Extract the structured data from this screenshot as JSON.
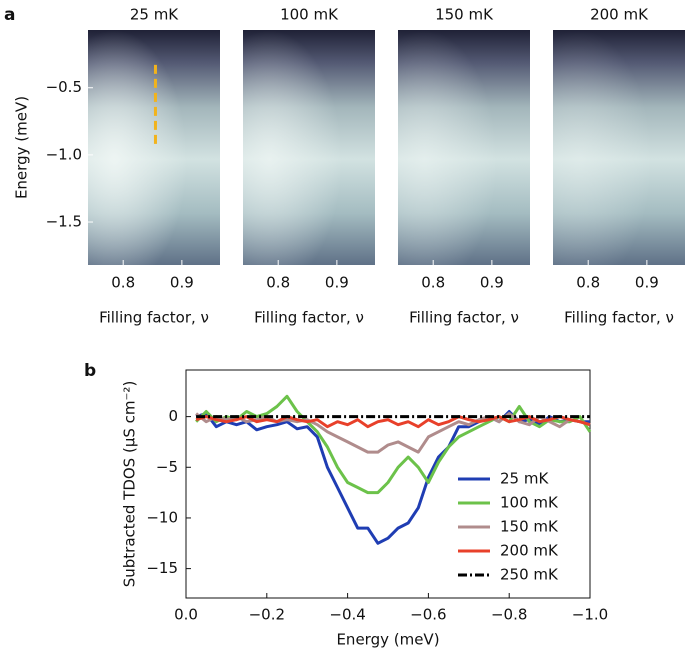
{
  "chart_data": [
    {
      "type": "heatmap",
      "panel_label": "a",
      "panels": [
        {
          "title": "25 mK"
        },
        {
          "title": "100 mK"
        },
        {
          "title": "150 mK"
        },
        {
          "title": "200 mK"
        }
      ],
      "xlabel": "Filling factor, ν",
      "ylabel": "Energy (meV)",
      "xlim": [
        0.74,
        0.965
      ],
      "ylim": [
        -0.07,
        -1.82
      ],
      "xticks": [
        0.8,
        0.9
      ],
      "yticks": [
        {
          "value": -0.5,
          "label": "−0.5"
        },
        {
          "value": -1.0,
          "label": "−1.0"
        },
        {
          "value": -1.5,
          "label": "−1.5"
        }
      ],
      "marker_line": {
        "x": 0.855,
        "y": [
          -0.33,
          -0.95
        ],
        "color": "#f2b31c"
      }
    },
    {
      "type": "line",
      "panel_label": "b",
      "xlabel": "Energy (meV)",
      "ylabel": "Subtracted TDOS (μS cm⁻²)",
      "xlim": [
        0.0,
        -1.0
      ],
      "ylim": [
        -17.9,
        4.6
      ],
      "xticks": [
        {
          "value": 0,
          "label": "0.0"
        },
        {
          "value": -0.2,
          "label": "−0.2"
        },
        {
          "value": -0.4,
          "label": "−0.4"
        },
        {
          "value": -0.6,
          "label": "−0.6"
        },
        {
          "value": -0.8,
          "label": "−0.8"
        },
        {
          "value": -1.0,
          "label": "−1.0"
        }
      ],
      "yticks": [
        {
          "value": -15,
          "label": "−15"
        },
        {
          "value": -10,
          "label": "−10"
        },
        {
          "value": -5,
          "label": "−5"
        },
        0
      ],
      "legend": "lower right",
      "x": [
        -0.025,
        -0.05,
        -0.075,
        -0.1,
        -0.125,
        -0.15,
        -0.175,
        -0.2,
        -0.225,
        -0.25,
        -0.275,
        -0.3,
        -0.325,
        -0.35,
        -0.375,
        -0.4,
        -0.425,
        -0.45,
        -0.475,
        -0.5,
        -0.525,
        -0.55,
        -0.575,
        -0.6,
        -0.625,
        -0.65,
        -0.675,
        -0.7,
        -0.725,
        -0.75,
        -0.775,
        -0.8,
        -0.825,
        -0.85,
        -0.875,
        -0.9,
        -0.925,
        -0.95,
        -0.975,
        -1.0
      ],
      "series": [
        {
          "name": "25 mK",
          "color": "#1f3db3",
          "dashed": false,
          "values": [
            0,
            0.3,
            -1,
            -0.5,
            -0.8,
            -0.5,
            -1.3,
            -1,
            -0.8,
            -0.5,
            -1.2,
            -1,
            -2,
            -5,
            -7,
            -9,
            -11,
            -11,
            -12.5,
            -12,
            -11,
            -10.5,
            -9,
            -6,
            -4,
            -3,
            -1,
            -1,
            -0.5,
            0,
            -0.5,
            0.5,
            -0.5,
            -0.3,
            -0.8,
            0,
            -0.5,
            -0.3,
            -0.5,
            -0.5
          ]
        },
        {
          "name": "100 mK",
          "color": "#6cc24a",
          "dashed": false,
          "values": [
            -0.5,
            0.5,
            -0.5,
            0,
            -0.3,
            0.5,
            0,
            0.3,
            1,
            2,
            0.5,
            -0.5,
            -1.5,
            -3,
            -5,
            -6.5,
            -7,
            -7.5,
            -7.5,
            -6.5,
            -5,
            -4,
            -5,
            -6.5,
            -4.5,
            -3,
            -2,
            -1.5,
            -1,
            -0.5,
            0,
            -0.5,
            1,
            -0.5,
            -1,
            -0.3,
            -0.5,
            -0.5,
            0,
            -1.5
          ]
        },
        {
          "name": "150 mK",
          "color": "#b08c8c",
          "dashed": false,
          "values": [
            0.3,
            -0.5,
            0,
            -0.3,
            0,
            -0.5,
            -0.3,
            0,
            -0.5,
            -0.3,
            -0.5,
            -0.3,
            -0.8,
            -1.5,
            -2,
            -2.5,
            -3,
            -3.5,
            -3.5,
            -2.8,
            -2.5,
            -3,
            -3.5,
            -2,
            -1.5,
            -1,
            -0.5,
            -0.8,
            -0.3,
            0,
            -0.5,
            0.3,
            -0.5,
            -0.8,
            0,
            -0.5,
            -1,
            -0.3,
            -0.5,
            -0.8
          ]
        },
        {
          "name": "200 mK",
          "color": "#e8402a",
          "dashed": false,
          "values": [
            -0.3,
            0,
            -0.3,
            -0.5,
            -0.3,
            0,
            -0.5,
            -0.3,
            -0.5,
            0,
            -0.3,
            -0.5,
            -0.3,
            -1,
            -0.5,
            -0.8,
            -0.3,
            -1,
            -0.5,
            -0.3,
            -0.8,
            -0.5,
            -1,
            -0.3,
            -0.8,
            -0.5,
            0,
            -0.3,
            -0.5,
            -0.3,
            0,
            -0.5,
            -0.3,
            0,
            -0.5,
            -0.3,
            0,
            -0.3,
            -0.5,
            -0.8
          ]
        },
        {
          "name": "250 mK",
          "color": "#000000",
          "dashed": true,
          "values": [
            0,
            0,
            0,
            0,
            0,
            0,
            0,
            0,
            0,
            0,
            0,
            0,
            0,
            0,
            0,
            0,
            0,
            0,
            0,
            0,
            0,
            0,
            0,
            0,
            0,
            0,
            0,
            0,
            0,
            0,
            0,
            0,
            0,
            0,
            0,
            0,
            0,
            0,
            0,
            0
          ]
        }
      ]
    }
  ]
}
